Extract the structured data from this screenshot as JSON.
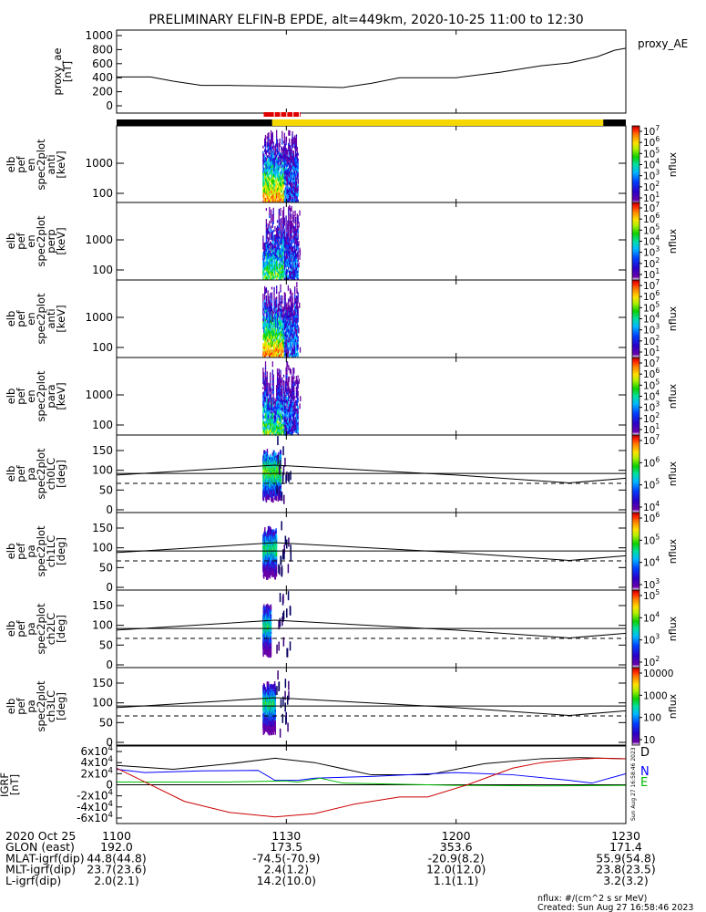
{
  "title": "PRELIMINARY ELFIN-B EPDE, alt=449km, 2020-10-25 11:00 to 12:30",
  "time_range": [
    "2020-10-25 11:00",
    "2020-10-25 12:30"
  ],
  "x_ticks": [
    "1100",
    "1130",
    "1200",
    "1230"
  ],
  "x_tick_minutes": [
    0,
    30,
    60,
    90
  ],
  "status_bars": {
    "black_ranges_min": [
      [
        0,
        27.5
      ],
      [
        86,
        90
      ]
    ],
    "yellow_range_min": [
      27.5,
      86
    ],
    "red_range_min": [
      26,
      32.5
    ],
    "colors": {
      "black": "#000000",
      "yellow": "#f5d800",
      "red": "#e00000"
    }
  },
  "chart_data": [
    {
      "type": "line",
      "panel": "proxy_ae",
      "ylabel_lines": [
        "proxy_ae",
        "[nT]"
      ],
      "legend": "proxy_AE",
      "ylim": [
        0,
        1000
      ],
      "yticks": [
        "0",
        "200",
        "400",
        "600",
        "800",
        "1000"
      ],
      "series": [
        {
          "x_min": [
            0,
            6,
            10,
            15,
            20,
            30,
            40,
            45,
            50,
            60,
            68,
            75,
            80,
            85,
            88,
            90
          ],
          "y": [
            410,
            410,
            350,
            290,
            290,
            280,
            260,
            320,
            400,
            400,
            480,
            570,
            610,
            700,
            790,
            820
          ],
          "color": "#000000"
        }
      ]
    },
    {
      "type": "heatmap",
      "panel": "ant",
      "ylabel_lines": [
        "elb",
        "pef",
        "en",
        "spec2plot",
        "anti",
        "[keV]"
      ],
      "yticks": [
        "100",
        "1000"
      ],
      "colorbar": {
        "label": "nflux",
        "ticks": [
          "10^1",
          "10^2",
          "10^3",
          "10^4",
          "10^5",
          "10^6",
          "10^7"
        ]
      }
    },
    {
      "type": "heatmap",
      "panel": "perp",
      "ylabel_lines": [
        "elb",
        "pef",
        "en",
        "spec2plot",
        "perp",
        "[keV]"
      ],
      "yticks": [
        "100",
        "1000"
      ],
      "colorbar": {
        "label": "nflux",
        "ticks": [
          "10^1",
          "10^2",
          "10^3",
          "10^4",
          "10^5",
          "10^6",
          "10^7"
        ]
      }
    },
    {
      "type": "heatmap",
      "panel": "en_ant2",
      "ylabel_lines": [
        "elb",
        "pef",
        "en",
        "spec2plot",
        "anti",
        "[keV]"
      ],
      "yticks": [
        "100",
        "1000"
      ],
      "colorbar": {
        "label": "nflux",
        "ticks": [
          "10^1",
          "10^2",
          "10^3",
          "10^4",
          "10^5",
          "10^6",
          "10^7"
        ]
      }
    },
    {
      "type": "heatmap",
      "panel": "para",
      "ylabel_lines": [
        "elb",
        "pef",
        "en",
        "spec2plot",
        "para",
        "[keV]"
      ],
      "yticks": [
        "100",
        "1000"
      ],
      "colorbar": {
        "label": "nflux",
        "ticks": [
          "10^1",
          "10^2",
          "10^3",
          "10^4",
          "10^5",
          "10^6",
          "10^7"
        ]
      }
    },
    {
      "type": "heatmap",
      "panel": "ch0LC",
      "ylabel_lines": [
        "elb",
        "pef",
        "pa",
        "spec2plot",
        "ch0LC",
        "[deg]"
      ],
      "ylim": [
        0,
        180
      ],
      "yticks": [
        "0",
        "50",
        "100",
        "150"
      ],
      "colorbar": {
        "label": "nflux",
        "ticks": [
          "10^4",
          "10^5",
          "10^6",
          "10^7"
        ]
      },
      "line_solid_deg": [
        [
          0,
          88
        ],
        [
          28,
          113
        ],
        [
          60,
          88
        ],
        [
          80,
          68
        ],
        [
          90,
          80
        ]
      ],
      "line_dashed_deg": [
        [
          0,
          67
        ],
        [
          90,
          67
        ]
      ],
      "line_flat_deg": 92
    },
    {
      "type": "heatmap",
      "panel": "ch1LC",
      "ylabel_lines": [
        "elb",
        "pef",
        "pa",
        "spec2plot",
        "ch1LC",
        "[deg]"
      ],
      "ylim": [
        0,
        180
      ],
      "yticks": [
        "0",
        "50",
        "100",
        "150"
      ],
      "colorbar": {
        "label": "nflux",
        "ticks": [
          "10^3",
          "10^4",
          "10^5",
          "10^6"
        ]
      },
      "line_solid_deg": [
        [
          0,
          88
        ],
        [
          28,
          113
        ],
        [
          60,
          88
        ],
        [
          80,
          68
        ],
        [
          90,
          80
        ]
      ],
      "line_dashed_deg": [
        [
          0,
          67
        ],
        [
          90,
          67
        ]
      ],
      "line_flat_deg": 92
    },
    {
      "type": "heatmap",
      "panel": "ch2LC",
      "ylabel_lines": [
        "elb",
        "pef",
        "pa",
        "spec2plot",
        "ch2LC",
        "[deg]"
      ],
      "ylim": [
        0,
        180
      ],
      "yticks": [
        "0",
        "50",
        "100",
        "150"
      ],
      "colorbar": {
        "label": "nflux",
        "ticks": [
          "10^2",
          "10^3",
          "10^4",
          "10^5"
        ]
      },
      "line_solid_deg": [
        [
          0,
          88
        ],
        [
          28,
          113
        ],
        [
          60,
          88
        ],
        [
          80,
          68
        ],
        [
          90,
          80
        ]
      ],
      "line_dashed_deg": [
        [
          0,
          67
        ],
        [
          90,
          67
        ]
      ],
      "line_flat_deg": 92
    },
    {
      "type": "heatmap",
      "panel": "ch3LC",
      "ylabel_lines": [
        "elb",
        "pef",
        "pa",
        "spec2plot",
        "ch3LC",
        "[deg]"
      ],
      "ylim": [
        0,
        180
      ],
      "yticks": [
        "0",
        "50",
        "100",
        "150"
      ],
      "colorbar": {
        "label": "nflux",
        "ticks": [
          "10",
          "100",
          "1000",
          "10000"
        ]
      },
      "line_solid_deg": [
        [
          0,
          88
        ],
        [
          28,
          113
        ],
        [
          60,
          88
        ],
        [
          80,
          68
        ],
        [
          90,
          80
        ]
      ],
      "line_dashed_deg": [
        [
          0,
          67
        ],
        [
          90,
          67
        ]
      ],
      "line_flat_deg": 92
    },
    {
      "type": "line",
      "panel": "igrf",
      "ylabel_lines": [
        "IGRF",
        "[nT]"
      ],
      "ylim": [
        -65000,
        65000
      ],
      "yticks": [
        "-6x10^4",
        "-4x10^4",
        "-2x10^4",
        "0",
        "2x10^4",
        "4x10^4",
        "6x10^4"
      ],
      "ytick_values": [
        -60000,
        -40000,
        -20000,
        0,
        20000,
        40000,
        60000
      ],
      "series": [
        {
          "name": "D",
          "color": "#000000",
          "x_min": [
            0,
            10,
            20,
            28,
            35,
            45,
            55,
            65,
            75,
            82,
            90
          ],
          "y": [
            35000,
            28000,
            38000,
            48000,
            40000,
            18000,
            18000,
            38000,
            47000,
            49000,
            47000
          ]
        },
        {
          "name": "N",
          "color": "#0000ff",
          "x_min": [
            0,
            5,
            15,
            25,
            28,
            32,
            35,
            45,
            60,
            70,
            80,
            84,
            90
          ],
          "y": [
            28000,
            22000,
            25000,
            26000,
            8000,
            8000,
            12000,
            15000,
            22000,
            18000,
            8000,
            3000,
            20000
          ]
        },
        {
          "name": "E",
          "color": "#00bb00",
          "x_min": [
            0,
            20,
            30,
            32,
            36,
            40,
            60,
            75,
            90
          ],
          "y": [
            5000,
            5000,
            7000,
            5000,
            12000,
            3000,
            -1000,
            -2000,
            -1000
          ]
        },
        {
          "name": "",
          "color": "#cc0000",
          "x_min": [
            0,
            5,
            12,
            20,
            28,
            35,
            42,
            50,
            55,
            62,
            70,
            75,
            80,
            85,
            90
          ],
          "y": [
            30000,
            5000,
            -30000,
            -50000,
            -58000,
            -52000,
            -35000,
            -22000,
            -22000,
            0,
            30000,
            40000,
            45000,
            48000,
            47000
          ]
        }
      ]
    }
  ],
  "ephemeris": {
    "rows": [
      {
        "label": "2020 Oct 25",
        "values": [
          "1100",
          "1130",
          "1200",
          "1230"
        ]
      },
      {
        "label": "GLON (east)",
        "values": [
          "192.0",
          "173.5",
          "353.6",
          "171.4"
        ]
      },
      {
        "label": "MLAT-igrf(dip)",
        "values": [
          "44.8(44.8)",
          "-74.5(-70.9)",
          "-20.9(8.2)",
          "55.9(54.8)"
        ]
      },
      {
        "label": "MLT-igrf(dip)",
        "values": [
          "23.7(23.6)",
          "2.4(1.2)",
          "12.0(12.0)",
          "23.8(23.5)"
        ]
      },
      {
        "label": "L-igrf(dip)",
        "values": [
          "2.0(2.1)",
          "14.2(10.0)",
          "1.1(1.1)",
          "3.2(3.2)"
        ]
      }
    ]
  },
  "footer": {
    "units": "nflux: #/(cm^2 s sr MeV)",
    "created": "Created: Sun Aug 27 16:58:46 2023",
    "side_stamp": "Sun Aug 27 16:58:46 2023"
  },
  "colorbar_colors": [
    "#ffffff",
    "#6a00a8",
    "#2a00c8",
    "#0040ff",
    "#00b8ff",
    "#00e0a0",
    "#10d000",
    "#b0f000",
    "#ffe000",
    "#ff8000",
    "#ff2000",
    "#b00000"
  ]
}
